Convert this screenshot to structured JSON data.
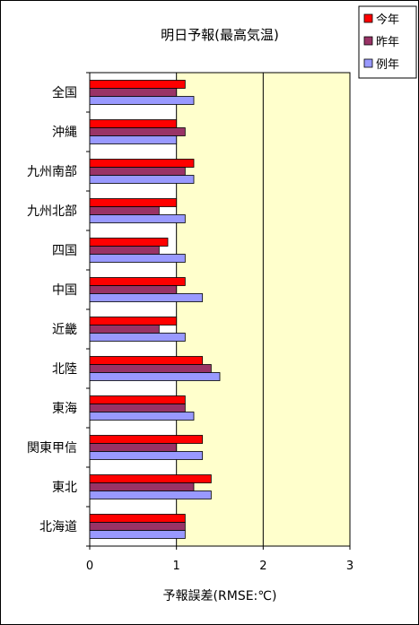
{
  "chart_data": {
    "type": "bar",
    "orientation": "horizontal",
    "title": "明日予報(最高気温)",
    "xlabel": "予報誤差(RMSE:℃)",
    "ylabel": "",
    "xlim": [
      0,
      3
    ],
    "x_ticks": [
      "0",
      "1",
      "2",
      "3"
    ],
    "grid": "vertical lines at 1 and 2",
    "plot_background": "#ffffcc",
    "legend_position": "top-right",
    "categories": [
      "全国",
      "沖縄",
      "九州南部",
      "九州北部",
      "四国",
      "中国",
      "近畿",
      "北陸",
      "東海",
      "関東甲信",
      "東北",
      "北海道"
    ],
    "series": [
      {
        "name": "今年",
        "color": "#ff0000",
        "values": [
          1.1,
          1.0,
          1.2,
          1.0,
          0.9,
          1.1,
          1.0,
          1.3,
          1.1,
          1.3,
          1.4,
          1.1
        ]
      },
      {
        "name": "昨年",
        "color": "#993366",
        "values": [
          1.0,
          1.1,
          1.1,
          0.8,
          0.8,
          1.0,
          0.8,
          1.4,
          1.1,
          1.0,
          1.2,
          1.1
        ]
      },
      {
        "name": "例年",
        "color": "#9999ff",
        "values": [
          1.2,
          1.0,
          1.2,
          1.1,
          1.1,
          1.3,
          1.1,
          1.5,
          1.2,
          1.3,
          1.4,
          1.1
        ]
      }
    ]
  }
}
